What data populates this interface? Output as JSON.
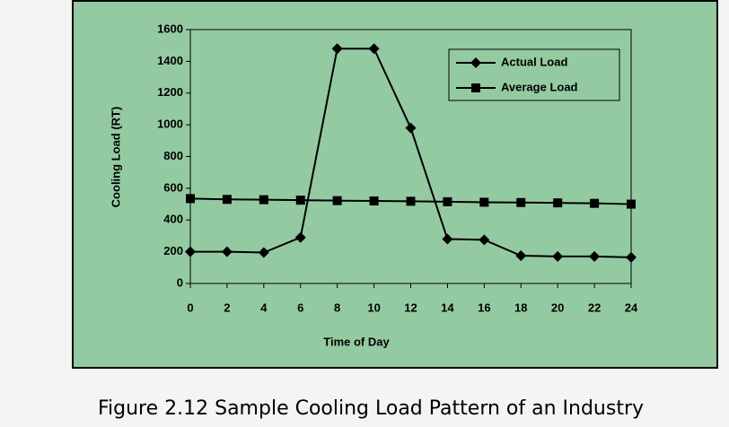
{
  "chart_data": {
    "type": "line",
    "x": [
      0,
      2,
      4,
      6,
      8,
      10,
      12,
      14,
      16,
      18,
      20,
      22,
      24
    ],
    "series": [
      {
        "name": "Actual Load",
        "color": "#000000",
        "marker": "diamond",
        "values": [
          200,
          200,
          195,
          290,
          1480,
          1480,
          980,
          280,
          275,
          175,
          170,
          170,
          165
        ]
      },
      {
        "name": "Average Load",
        "color": "#000000",
        "marker": "square",
        "values": [
          535,
          530,
          528,
          525,
          522,
          520,
          518,
          515,
          512,
          510,
          508,
          505,
          500
        ]
      }
    ],
    "xlabel": "Time of Day",
    "ylabel": "Cooling Load (RT)",
    "xlim": [
      0,
      24
    ],
    "xticks": [
      0,
      2,
      4,
      6,
      8,
      10,
      12,
      14,
      16,
      18,
      20,
      22,
      24
    ],
    "ylim": [
      0,
      1600
    ],
    "yticks": [
      0,
      200,
      400,
      600,
      800,
      1000,
      1200,
      1400,
      1600
    ],
    "legend": "upper right",
    "background": "#94caa2",
    "caption": "Figure 2.12  Sample Cooling Load Pattern of an Industry"
  }
}
